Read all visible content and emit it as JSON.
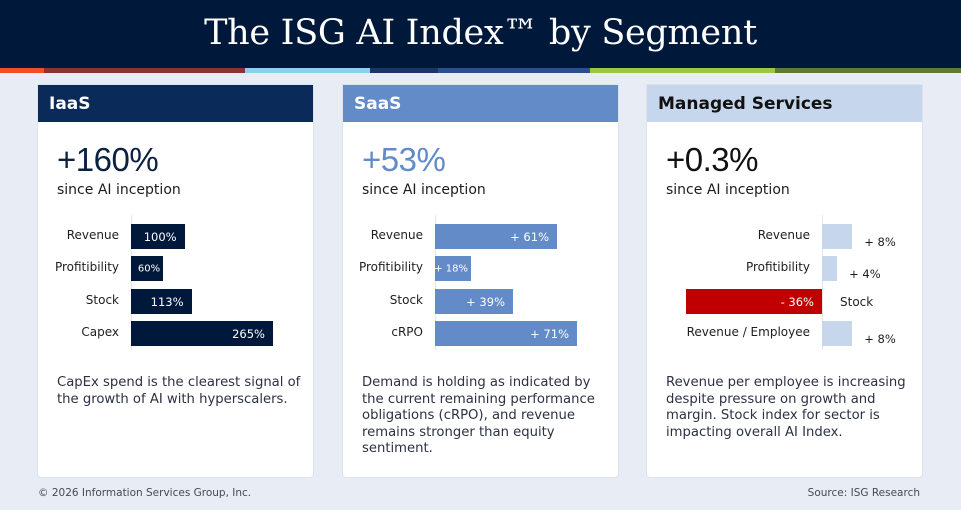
{
  "title": "The ISG AI Index™ by Segment",
  "stripe_colors": [
    "#f04e23",
    "#8b3232",
    "#8ad0ea",
    "#1b3566",
    "#2b4f8c",
    "#9ac545",
    "#5d7b35"
  ],
  "colors": {
    "banner": "#00183a",
    "iaas_header": "#0a2a5a",
    "iaas_bar": "#00183a",
    "saas_header": "#628bc8",
    "saas_bar": "#628bc8",
    "ms_header": "#c6d7ed",
    "ms_bar_positive": "#c6d7ed",
    "ms_bar_negative": "#c00000"
  },
  "cards": [
    {
      "title": "IaaS",
      "headline": "+160%",
      "subhead": "since AI inception",
      "description": "CapEx spend is the clearest signal of the growth of AI with hyperscalers."
    },
    {
      "title": "SaaS",
      "headline": "+53%",
      "subhead": "since AI inception",
      "description": "Demand is holding as indicated by the current remaining performance obligations (cRPO), and revenue remains stronger than equity sentiment."
    },
    {
      "title": "Managed Services",
      "headline": "+0.3%",
      "subhead": "since AI inception",
      "description": "Revenue per employee is increasing despite pressure on growth and margin. Stock index for sector is impacting overall AI Index."
    }
  ],
  "chart_data": [
    {
      "type": "bar",
      "orientation": "horizontal",
      "title": "IaaS",
      "categories": [
        "Revenue",
        "Profitibility",
        "Stock",
        "Capex"
      ],
      "values": [
        100,
        60,
        113,
        265
      ],
      "labels": [
        "100%",
        "60%",
        "113%",
        "265%"
      ],
      "unit": "%",
      "xlim": [
        0,
        265
      ]
    },
    {
      "type": "bar",
      "orientation": "horizontal",
      "title": "SaaS",
      "categories": [
        "Revenue",
        "Profitibility",
        "Stock",
        "cRPO"
      ],
      "values": [
        61,
        18,
        39,
        71
      ],
      "labels": [
        "+ 61%",
        "+ 18%",
        "+ 39%",
        "+ 71%"
      ],
      "unit": "%",
      "xlim": [
        0,
        71
      ]
    },
    {
      "type": "bar",
      "orientation": "horizontal",
      "title": "Managed Services",
      "categories": [
        "Revenue",
        "Profitibility",
        "Stock",
        "Revenue / Employee"
      ],
      "values": [
        8,
        4,
        -36,
        8
      ],
      "labels": [
        "+ 8%",
        "+ 4%",
        "- 36%",
        "+ 8%"
      ],
      "unit": "%",
      "xlim": [
        -36,
        8
      ]
    }
  ],
  "footer": {
    "copyright": "© 2026 Information Services Group, Inc.",
    "source": "Source: ISG Research"
  }
}
